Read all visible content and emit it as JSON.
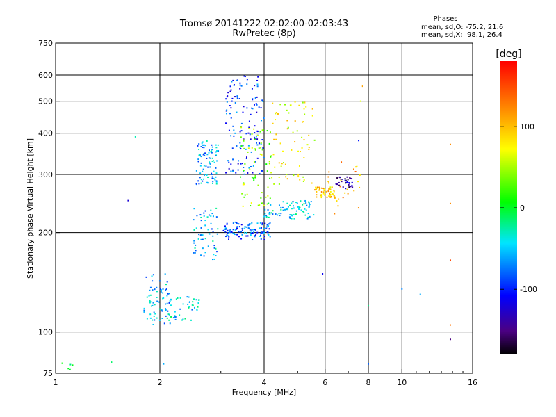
{
  "title_line1": "Tromsø 20141222 02:02:00-02:03:43",
  "title_line2": "RwPretec (8p)",
  "stats": {
    "heading": "Phases",
    "line_o": "mean, sd,O: -75.2, 21.6",
    "line_x": "mean, sd,X:  98.1, 26.4"
  },
  "colorbar": {
    "unit_label": "[deg]",
    "range": [
      -180,
      180
    ],
    "ticks": [
      {
        "value": 100,
        "label": "100"
      },
      {
        "value": 0,
        "label": "0"
      },
      {
        "value": -100,
        "label": "-100"
      }
    ]
  },
  "chart_data": {
    "type": "scatter",
    "title": "Tromsø 20141222 02:02:00-02:03:43",
    "subtitle": "RwPretec (8p)",
    "xlabel": "Frequency [MHz]",
    "ylabel": "Stationary phase Virtual Height [km]",
    "x_scale": "log2",
    "y_scale": "log",
    "xlim": [
      1,
      16
    ],
    "ylim": [
      75,
      750
    ],
    "grid": true,
    "x_ticks": [
      {
        "value": 1,
        "label": "1"
      },
      {
        "value": 2,
        "label": "2"
      },
      {
        "value": 4,
        "label": "4"
      },
      {
        "value": 6,
        "label": "6"
      },
      {
        "value": 8,
        "label": "8"
      },
      {
        "value": 10,
        "label": "10"
      },
      {
        "value": 16,
        "label": "16"
      }
    ],
    "y_ticks": [
      {
        "value": 75,
        "label": "75"
      },
      {
        "value": 100,
        "label": "100"
      },
      {
        "value": 200,
        "label": "200"
      },
      {
        "value": 300,
        "label": "300"
      },
      {
        "value": 400,
        "label": "400"
      },
      {
        "value": 500,
        "label": "500"
      },
      {
        "value": 600,
        "label": "600"
      },
      {
        "value": 750,
        "label": "750"
      }
    ],
    "x_grid_lines": [
      2,
      4,
      6,
      8,
      10
    ],
    "y_grid_lines": [
      100,
      200,
      300,
      400,
      500,
      600
    ],
    "color_scale": "rainbow, phase in degrees from -180 to 180",
    "clusters": [
      {
        "x_range": [
          1.03,
          1.12
        ],
        "y_range": [
          76,
          81
        ],
        "phase": -10,
        "count": 5
      },
      {
        "x_range": [
          1.8,
          2.15
        ],
        "y_range": [
          105,
          150
        ],
        "phase": -60,
        "count": 70
      },
      {
        "x_range": [
          2.1,
          2.6
        ],
        "y_range": [
          108,
          130
        ],
        "phase": -45,
        "count": 45
      },
      {
        "x_range": [
          2.5,
          2.95
        ],
        "y_range": [
          165,
          240
        ],
        "phase": -55,
        "count": 60
      },
      {
        "x_range": [
          2.55,
          2.95
        ],
        "y_range": [
          280,
          380
        ],
        "phase": -60,
        "count": 90
      },
      {
        "x_range": [
          3.05,
          4.2
        ],
        "y_range": [
          190,
          215
        ],
        "phase": -80,
        "count": 110
      },
      {
        "x_range": [
          3.1,
          4.0
        ],
        "y_range": [
          300,
          600
        ],
        "phase": -90,
        "count": 140
      },
      {
        "x_range": [
          3.4,
          4.2
        ],
        "y_range": [
          240,
          420
        ],
        "phase": 40,
        "count": 70
      },
      {
        "x_range": [
          4.0,
          5.6
        ],
        "y_range": [
          220,
          250
        ],
        "phase": -45,
        "count": 80
      },
      {
        "x_range": [
          4.2,
          5.6
        ],
        "y_range": [
          280,
          500
        ],
        "phase": 70,
        "count": 70
      },
      {
        "x_range": [
          5.6,
          6.4
        ],
        "y_range": [
          255,
          275
        ],
        "phase": 95,
        "count": 55
      },
      {
        "x_range": [
          6.4,
          7.2
        ],
        "y_range": [
          272,
          295
        ],
        "phase": -140,
        "count": 35
      },
      {
        "x_range": [
          6.0,
          7.6
        ],
        "y_range": [
          220,
          330
        ],
        "phase": 110,
        "count": 25
      }
    ],
    "isolated_points": [
      {
        "x": 1.45,
        "y": 81,
        "phase": -15
      },
      {
        "x": 1.7,
        "y": 390,
        "phase": -30
      },
      {
        "x": 1.62,
        "y": 250,
        "phase": -120
      },
      {
        "x": 2.05,
        "y": 80,
        "phase": -60
      },
      {
        "x": 5.9,
        "y": 150,
        "phase": -110
      },
      {
        "x": 8.0,
        "y": 120,
        "phase": -20
      },
      {
        "x": 8.0,
        "y": 80,
        "phase": -80
      },
      {
        "x": 10.0,
        "y": 135,
        "phase": -70
      },
      {
        "x": 11.3,
        "y": 130,
        "phase": -60
      },
      {
        "x": 13.8,
        "y": 370,
        "phase": 120
      },
      {
        "x": 13.8,
        "y": 245,
        "phase": 120
      },
      {
        "x": 13.8,
        "y": 165,
        "phase": 150
      },
      {
        "x": 13.8,
        "y": 105,
        "phase": 130
      },
      {
        "x": 13.8,
        "y": 95,
        "phase": -150
      },
      {
        "x": 7.7,
        "y": 555,
        "phase": 110
      },
      {
        "x": 7.6,
        "y": 500,
        "phase": 60
      },
      {
        "x": 7.5,
        "y": 380,
        "phase": -100
      }
    ]
  }
}
